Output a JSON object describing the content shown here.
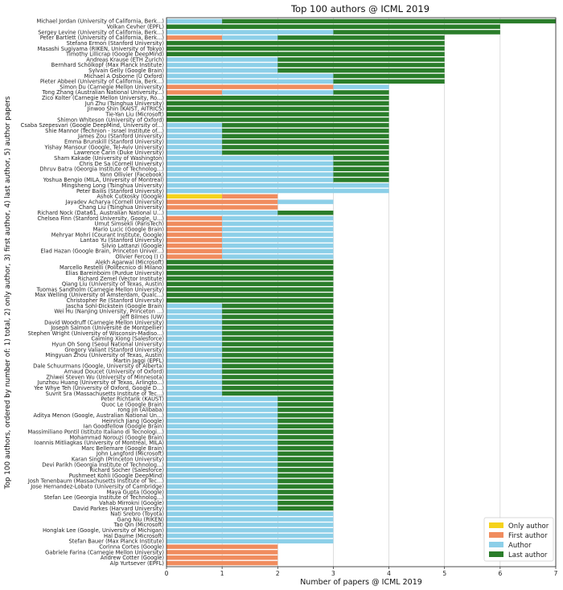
{
  "chart_data": {
    "type": "bar",
    "orientation": "horizontal",
    "stacked": true,
    "title": "Top 100 authors @ ICML 2019",
    "xlabel": "Number of papers @ ICML 2019",
    "ylabel": "Top 100 authors, ordered by number of: 1) total, 2) only author, 3) first author, 4) last author, 5) author papers",
    "xlim": [
      0,
      7
    ],
    "xticks": [
      "0",
      "1",
      "2",
      "3",
      "4",
      "5",
      "6",
      "7"
    ],
    "grid": "x",
    "legend_position": "bottom-right",
    "stack_order": [
      "Only author",
      "First author",
      "Author",
      "Last author"
    ],
    "series": [
      {
        "name": "Only author",
        "color": "#f5d21c"
      },
      {
        "name": "First author",
        "color": "#f08c5e"
      },
      {
        "name": "Author",
        "color": "#8ccfe8"
      },
      {
        "name": "Last author",
        "color": "#2a7d2a"
      }
    ],
    "authors": [
      {
        "name": "Michael Jordan (University of California, Berk...)",
        "values": [
          0,
          0,
          1,
          6
        ]
      },
      {
        "name": "Volkan Cevher (EPFL)",
        "values": [
          0,
          0,
          0,
          6
        ]
      },
      {
        "name": "Sergey Levine (University of California, Berk...)",
        "values": [
          0,
          0,
          3,
          3
        ]
      },
      {
        "name": "Peter Bartlett (University of California, Berk...)",
        "values": [
          0,
          1,
          1,
          3
        ]
      },
      {
        "name": "Stefano Ermon (Stanford University)",
        "values": [
          0,
          0,
          0,
          5
        ]
      },
      {
        "name": "Masashi Sugiyama (RIKEN, University of Tokyo)",
        "values": [
          0,
          0,
          0,
          5
        ]
      },
      {
        "name": "Timothy Lillicrap (Google DeepMind)",
        "values": [
          0,
          0,
          0,
          5
        ]
      },
      {
        "name": "Andreas Krause (ETH Zurich)",
        "values": [
          0,
          0,
          2,
          3
        ]
      },
      {
        "name": "Bernhard Schölkopf (Max Planck Institute)",
        "values": [
          0,
          0,
          2,
          3
        ]
      },
      {
        "name": "Sylvain Gelly (Google Brain)",
        "values": [
          0,
          0,
          2,
          3
        ]
      },
      {
        "name": "Michael A Osborne (U Oxford)",
        "values": [
          0,
          0,
          3,
          2
        ]
      },
      {
        "name": "Pieter Abbeel (University of California, Berk...)",
        "values": [
          0,
          0,
          3,
          2
        ]
      },
      {
        "name": "Simon Du (Carnegie Mellon University)",
        "values": [
          0,
          3,
          1,
          0
        ]
      },
      {
        "name": "Tong Zhang (Australian National University...)",
        "values": [
          0,
          1,
          2,
          1
        ]
      },
      {
        "name": "Zico Kolter (Carnegie Mellon University, Ro...)",
        "values": [
          0,
          0,
          0,
          4
        ]
      },
      {
        "name": "Jun Zhu (Tsinghua University)",
        "values": [
          0,
          0,
          0,
          4
        ]
      },
      {
        "name": "Jinwoo Shin (KAIST, AITRICS)",
        "values": [
          0,
          0,
          0,
          4
        ]
      },
      {
        "name": "Tie-Yan Liu (Microsoft)",
        "values": [
          0,
          0,
          0,
          4
        ]
      },
      {
        "name": "Shimon Whiteson (University of Oxford)",
        "values": [
          0,
          0,
          0,
          4
        ]
      },
      {
        "name": "Csaba Szepesvari (Google DeepMind, University of...)",
        "values": [
          0,
          0,
          1,
          3
        ]
      },
      {
        "name": "Shie Mannor (Technion - Israel Institute of...)",
        "values": [
          0,
          0,
          1,
          3
        ]
      },
      {
        "name": "James Zou (Stanford University)",
        "values": [
          0,
          0,
          1,
          3
        ]
      },
      {
        "name": "Emma Brunskill (Stanford University)",
        "values": [
          0,
          0,
          1,
          3
        ]
      },
      {
        "name": "Yishay Mansour (Google, Tel-Aviv University)",
        "values": [
          0,
          0,
          1,
          3
        ]
      },
      {
        "name": "Lawrence Carin (Duke University)",
        "values": [
          0,
          0,
          1,
          3
        ]
      },
      {
        "name": "Sham Kakade (University of Washington)",
        "values": [
          0,
          0,
          3,
          1
        ]
      },
      {
        "name": "Chris De Sa (Cornell University)",
        "values": [
          0,
          0,
          3,
          1
        ]
      },
      {
        "name": "Dhruv Batra (Georgia Institute of Technolog...)",
        "values": [
          0,
          0,
          3,
          1
        ]
      },
      {
        "name": "Yann Ollivier (Facebook)",
        "values": [
          0,
          0,
          3,
          1
        ]
      },
      {
        "name": "Yoshua Bengio (MILA, University of Montreal)",
        "values": [
          0,
          0,
          3,
          1
        ]
      },
      {
        "name": "Mingsheng Long (Tsinghua University)",
        "values": [
          0,
          0,
          4,
          0
        ]
      },
      {
        "name": "Peter Bailis (Stanford University)",
        "values": [
          0,
          0,
          4,
          0
        ]
      },
      {
        "name": "Ashok Cutkosky (Google)",
        "values": [
          1,
          1,
          0,
          0
        ]
      },
      {
        "name": "Jayadev Acharya (Cornell University)",
        "values": [
          0,
          2,
          1,
          0
        ]
      },
      {
        "name": "Chang Liu (Tsinghua University)",
        "values": [
          0,
          2,
          0,
          0
        ]
      },
      {
        "name": "Richard Nock (Data61, Australian National U...)",
        "values": [
          0,
          0,
          2,
          1
        ]
      },
      {
        "name": "Chelsea Finn (Stanford University, Google, U...)",
        "values": [
          0,
          1,
          2,
          0
        ]
      },
      {
        "name": "Umut Simsekli (ParisTech)",
        "values": [
          0,
          1,
          2,
          0
        ]
      },
      {
        "name": "Mario Lucic (Google Brain)",
        "values": [
          0,
          1,
          2,
          0
        ]
      },
      {
        "name": "Mehryar Mohri (Courant Institute, Google)",
        "values": [
          0,
          1,
          2,
          0
        ]
      },
      {
        "name": "Lantao Yu (Stanford University)",
        "values": [
          0,
          1,
          2,
          0
        ]
      },
      {
        "name": "Silvio Lattanzi (Google)",
        "values": [
          0,
          1,
          2,
          0
        ]
      },
      {
        "name": "Elad Hazan (Google Brain, Princeton Univer...)",
        "values": [
          0,
          1,
          2,
          0
        ]
      },
      {
        "name": "Olivier Fercoq () ()",
        "values": [
          0,
          1,
          2,
          0
        ]
      },
      {
        "name": "Alekh Agarwal (Microsoft)",
        "values": [
          0,
          0,
          0,
          3
        ]
      },
      {
        "name": "Marcello Restelli (Politecnico di Milano)",
        "values": [
          0,
          0,
          0,
          3
        ]
      },
      {
        "name": "Elias Bareinboim (Purdue University)",
        "values": [
          0,
          0,
          0,
          3
        ]
      },
      {
        "name": "Richard Zemel (Vector Institute)",
        "values": [
          0,
          0,
          0,
          3
        ]
      },
      {
        "name": "Qiang Liu (University of Texas, Austin)",
        "values": [
          0,
          0,
          0,
          3
        ]
      },
      {
        "name": "Tuomas Sandholm (Carnegie Mellon University)",
        "values": [
          0,
          0,
          0,
          3
        ]
      },
      {
        "name": "Max Welling (University of Amsterdam, Qualc...)",
        "values": [
          0,
          0,
          0,
          3
        ]
      },
      {
        "name": "Christopher Re (Stanford University)",
        "values": [
          0,
          0,
          0,
          3
        ]
      },
      {
        "name": "Jascha Sohl-Dickstein (Google Brain)",
        "values": [
          0,
          0,
          1,
          2
        ]
      },
      {
        "name": "Wei Hu (Nanjing University, Princeton ...)",
        "values": [
          0,
          0,
          1,
          2
        ]
      },
      {
        "name": "Jeff Bilmes (UW)",
        "values": [
          0,
          0,
          1,
          2
        ]
      },
      {
        "name": "David Woodruff (Carnegie Mellon University)",
        "values": [
          0,
          0,
          1,
          2
        ]
      },
      {
        "name": "Joseph Salmon (Université de Montpellier)",
        "values": [
          0,
          0,
          1,
          2
        ]
      },
      {
        "name": "Stephen Wright (University of Wisconsin-Madiso...)",
        "values": [
          0,
          0,
          1,
          2
        ]
      },
      {
        "name": "Caiming Xiong (Salesforce)",
        "values": [
          0,
          0,
          1,
          2
        ]
      },
      {
        "name": "Hyun Oh Song (Seoul National University)",
        "values": [
          0,
          0,
          1,
          2
        ]
      },
      {
        "name": "Gregory Valiant (Stanford University)",
        "values": [
          0,
          0,
          1,
          2
        ]
      },
      {
        "name": "Mingyuan Zhou (University of Texas, Austin)",
        "values": [
          0,
          0,
          1,
          2
        ]
      },
      {
        "name": "Martin Jaggi (EPFL)",
        "values": [
          0,
          0,
          1,
          2
        ]
      },
      {
        "name": "Dale Schuurmans (Google, University of Alberta)",
        "values": [
          0,
          0,
          1,
          2
        ]
      },
      {
        "name": "Arnaud Doucet (University of Oxford)",
        "values": [
          0,
          0,
          1,
          2
        ]
      },
      {
        "name": "Zhiwei Steven Wu (University of Minnesota)",
        "values": [
          0,
          0,
          1,
          2
        ]
      },
      {
        "name": "Junzhou Huang (University of Texas, Arlingto...)",
        "values": [
          0,
          0,
          1,
          2
        ]
      },
      {
        "name": "Yee Whye Teh (University of Oxford, Google D...)",
        "values": [
          0,
          0,
          1,
          2
        ]
      },
      {
        "name": "Suvrit Sra (Massachusetts Institute of Tec...)",
        "values": [
          0,
          0,
          1,
          2
        ]
      },
      {
        "name": "Peter Richtarik (KAUST)",
        "values": [
          0,
          0,
          2,
          1
        ]
      },
      {
        "name": "Quoc Le (Google Brain)",
        "values": [
          0,
          0,
          2,
          1
        ]
      },
      {
        "name": "rong jin (Alibaba)",
        "values": [
          0,
          0,
          2,
          1
        ]
      },
      {
        "name": "Aditya Menon (Google, Australian National Un...)",
        "values": [
          0,
          0,
          2,
          1
        ]
      },
      {
        "name": "Heinrich Jiang (Google)",
        "values": [
          0,
          0,
          2,
          1
        ]
      },
      {
        "name": "Ian Goodfellow (Google Brain)",
        "values": [
          0,
          0,
          2,
          1
        ]
      },
      {
        "name": "Massimiliano Pontil (Istituto Italiano di Tecnologi...)",
        "values": [
          0,
          0,
          2,
          1
        ]
      },
      {
        "name": "Mohammad Norouzi (Google Brain)",
        "values": [
          0,
          0,
          2,
          1
        ]
      },
      {
        "name": "Ioannis Mitliagkas (University of Montreal, MILA)",
        "values": [
          0,
          0,
          2,
          1
        ]
      },
      {
        "name": "Marc Bellemare (Google Brain)",
        "values": [
          0,
          0,
          2,
          1
        ]
      },
      {
        "name": "John Langford (Microsoft)",
        "values": [
          0,
          0,
          2,
          1
        ]
      },
      {
        "name": "Karan Singh (Princeton University)",
        "values": [
          0,
          0,
          2,
          1
        ]
      },
      {
        "name": "Devi Parikh (Georgia Institute of Technolog...)",
        "values": [
          0,
          0,
          2,
          1
        ]
      },
      {
        "name": "Richard Socher (Salesforce)",
        "values": [
          0,
          0,
          2,
          1
        ]
      },
      {
        "name": "Pushmeet Kohli (Google DeepMind)",
        "values": [
          0,
          0,
          2,
          1
        ]
      },
      {
        "name": "Josh Tenenbaum (Massachusetts Institute of Tec...)",
        "values": [
          0,
          0,
          2,
          1
        ]
      },
      {
        "name": "Jose Hernandez-Lobato (University of Cambridge)",
        "values": [
          0,
          0,
          2,
          1
        ]
      },
      {
        "name": "Maya Gupta (Google)",
        "values": [
          0,
          0,
          2,
          1
        ]
      },
      {
        "name": "Stefan Lee (Georgia Institute of Technolog...)",
        "values": [
          0,
          0,
          2,
          1
        ]
      },
      {
        "name": "Vahab Mirrokni (Google)",
        "values": [
          0,
          0,
          2,
          1
        ]
      },
      {
        "name": "David Parkes (Harvard University)",
        "values": [
          0,
          0,
          2,
          1
        ]
      },
      {
        "name": "Nati Srebro (Toyota)",
        "values": [
          0,
          0,
          3,
          0
        ]
      },
      {
        "name": "Gang Niu (RIKEN)",
        "values": [
          0,
          0,
          3,
          0
        ]
      },
      {
        "name": "Tao Qin (Microsoft)",
        "values": [
          0,
          0,
          3,
          0
        ]
      },
      {
        "name": "Honglak Lee (Google, University of Michigan)",
        "values": [
          0,
          0,
          3,
          0
        ]
      },
      {
        "name": "Hal Daume (Microsoft)",
        "values": [
          0,
          0,
          3,
          0
        ]
      },
      {
        "name": "Stefan Bauer (Max Planck Institute)",
        "values": [
          0,
          0,
          3,
          0
        ]
      },
      {
        "name": "Corinna Cortes (Google)",
        "values": [
          0,
          2,
          0,
          0
        ]
      },
      {
        "name": "Gabriele Farina (Carnegie Mellon University)",
        "values": [
          0,
          2,
          0,
          0
        ]
      },
      {
        "name": "Andrew Cotter (Google)",
        "values": [
          0,
          2,
          0,
          0
        ]
      },
      {
        "name": "Alp Yurtsever (EPFL)",
        "values": [
          0,
          2,
          0,
          0
        ]
      }
    ]
  }
}
